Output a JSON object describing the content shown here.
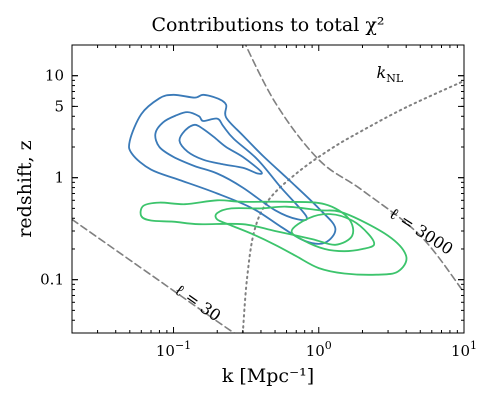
{
  "chart_data": {
    "type": "contour",
    "title": "Contributions to total χ²",
    "xlabel": "k [Mpc⁻¹]",
    "ylabel": "redshift, z",
    "xscale": "log",
    "yscale": "log",
    "xlim": [
      0.02,
      10
    ],
    "ylim": [
      0.03,
      20
    ],
    "x_ticks": [
      {
        "value": 0.1,
        "base": "10",
        "exp": "−1"
      },
      {
        "value": 1,
        "base": "10",
        "exp": "0"
      },
      {
        "value": 10,
        "base": "10",
        "exp": "1"
      }
    ],
    "y_ticks": [
      {
        "value": 0.1,
        "label": "0.1"
      },
      {
        "value": 1,
        "label": "1"
      },
      {
        "value": 5,
        "label": "5"
      },
      {
        "value": 10,
        "label": "10"
      }
    ],
    "grid": false,
    "lines": [
      {
        "kind": "ell",
        "label": "ℓ = 30",
        "style": "dashed",
        "color": "#808080",
        "points": [
          [
            0.02,
            0.39
          ],
          [
            0.06,
            0.13
          ],
          [
            0.1,
            0.078
          ],
          [
            0.2,
            0.039
          ],
          [
            0.28,
            0.028
          ]
        ]
      },
      {
        "kind": "ell",
        "label": "ℓ = 3000",
        "style": "dashed",
        "color": "#808080",
        "points": [
          [
            0.28,
            28
          ],
          [
            0.5,
            5.5
          ],
          [
            1,
            1.5
          ],
          [
            2,
            0.75
          ],
          [
            5,
            0.27
          ],
          [
            10,
            0.075
          ]
        ]
      },
      {
        "kind": "k_NL",
        "label": "k_NL",
        "style": "dotted",
        "color": "#808080",
        "points": [
          [
            0.3,
            0.03
          ],
          [
            0.32,
            0.1
          ],
          [
            0.36,
            0.3
          ],
          [
            0.45,
            0.6
          ],
          [
            0.7,
            1.1
          ],
          [
            1.2,
            1.9
          ],
          [
            2,
            2.9
          ],
          [
            4,
            4.9
          ],
          [
            10,
            8.9
          ]
        ]
      }
    ],
    "contours": [
      {
        "group": "blue",
        "color": "#3a7ab8",
        "level": "outer",
        "points": [
          [
            0.05,
            2.3
          ],
          [
            0.06,
            4.2
          ],
          [
            0.08,
            6.0
          ],
          [
            0.1,
            6.5
          ],
          [
            0.14,
            6.1
          ],
          [
            0.16,
            6.5
          ],
          [
            0.2,
            6.0
          ],
          [
            0.23,
            5.2
          ],
          [
            0.23,
            3.9
          ],
          [
            0.3,
            2.6
          ],
          [
            0.42,
            1.6
          ],
          [
            0.65,
            0.9
          ],
          [
            1.0,
            0.5
          ],
          [
            1.3,
            0.32
          ],
          [
            1.1,
            0.23
          ],
          [
            0.8,
            0.24
          ],
          [
            0.55,
            0.33
          ],
          [
            0.35,
            0.5
          ],
          [
            0.2,
            0.7
          ],
          [
            0.11,
            0.95
          ],
          [
            0.07,
            1.2
          ],
          [
            0.052,
            1.7
          ]
        ]
      },
      {
        "group": "blue",
        "color": "#3a7ab8",
        "level": "middle",
        "points": [
          [
            0.075,
            2.7
          ],
          [
            0.085,
            3.5
          ],
          [
            0.105,
            4.1
          ],
          [
            0.125,
            4.4
          ],
          [
            0.15,
            4.0
          ],
          [
            0.16,
            3.6
          ],
          [
            0.2,
            3.8
          ],
          [
            0.22,
            3.2
          ],
          [
            0.26,
            2.4
          ],
          [
            0.38,
            1.5
          ],
          [
            0.55,
            0.8
          ],
          [
            0.82,
            0.42
          ],
          [
            0.72,
            0.39
          ],
          [
            0.5,
            0.48
          ],
          [
            0.3,
            0.8
          ],
          [
            0.2,
            1.1
          ],
          [
            0.14,
            1.3
          ],
          [
            0.1,
            1.6
          ],
          [
            0.08,
            2.0
          ]
        ]
      },
      {
        "group": "blue",
        "color": "#3a7ab8",
        "level": "inner",
        "points": [
          [
            0.11,
            2.3
          ],
          [
            0.12,
            2.9
          ],
          [
            0.14,
            3.3
          ],
          [
            0.16,
            3.0
          ],
          [
            0.19,
            2.5
          ],
          [
            0.23,
            2.0
          ],
          [
            0.3,
            1.6
          ],
          [
            0.4,
            1.15
          ],
          [
            0.38,
            1.1
          ],
          [
            0.3,
            1.25
          ],
          [
            0.22,
            1.35
          ],
          [
            0.16,
            1.5
          ],
          [
            0.125,
            1.8
          ]
        ]
      },
      {
        "group": "green",
        "color": "#3cc46c",
        "level": "outer",
        "points": [
          [
            0.06,
            0.42
          ],
          [
            0.062,
            0.53
          ],
          [
            0.08,
            0.57
          ],
          [
            0.12,
            0.55
          ],
          [
            0.2,
            0.6
          ],
          [
            0.3,
            0.58
          ],
          [
            0.6,
            0.58
          ],
          [
            1.1,
            0.55
          ],
          [
            1.6,
            0.4
          ],
          [
            1.7,
            0.27
          ],
          [
            1.3,
            0.22
          ],
          [
            0.9,
            0.25
          ],
          [
            0.5,
            0.3
          ],
          [
            0.3,
            0.35
          ],
          [
            0.15,
            0.35
          ],
          [
            0.1,
            0.37
          ],
          [
            0.07,
            0.38
          ]
        ]
      },
      {
        "group": "green",
        "color": "#3cc46c",
        "level": "middle",
        "points": [
          [
            0.2,
            0.45
          ],
          [
            0.25,
            0.5
          ],
          [
            0.4,
            0.5
          ],
          [
            0.6,
            0.52
          ],
          [
            1.0,
            0.48
          ],
          [
            1.5,
            0.45
          ],
          [
            3.0,
            0.27
          ],
          [
            4.0,
            0.17
          ],
          [
            3.5,
            0.12
          ],
          [
            2.5,
            0.112
          ],
          [
            1.5,
            0.115
          ],
          [
            1.0,
            0.13
          ],
          [
            0.7,
            0.17
          ],
          [
            0.5,
            0.22
          ],
          [
            0.35,
            0.28
          ],
          [
            0.25,
            0.34
          ],
          [
            0.2,
            0.39
          ]
        ]
      },
      {
        "group": "green",
        "color": "#3cc46c",
        "level": "inner",
        "points": [
          [
            0.65,
            0.3
          ],
          [
            0.85,
            0.4
          ],
          [
            1.2,
            0.44
          ],
          [
            1.7,
            0.38
          ],
          [
            2.2,
            0.28
          ],
          [
            2.4,
            0.22
          ],
          [
            2.0,
            0.2
          ],
          [
            1.5,
            0.19
          ],
          [
            1.1,
            0.2
          ],
          [
            0.8,
            0.24
          ]
        ]
      }
    ],
    "annotations": [
      {
        "id": "knl",
        "text_main": "k",
        "text_sub": "NL",
        "x": 2.5,
        "y": 9.5
      },
      {
        "id": "ell30",
        "text": "ℓ = 30",
        "x": 0.1,
        "y": 0.075,
        "rotation": 35
      },
      {
        "id": "ell3000",
        "text": "ℓ = 3000",
        "x": 3.0,
        "y": 0.42,
        "rotation": 33
      }
    ]
  }
}
